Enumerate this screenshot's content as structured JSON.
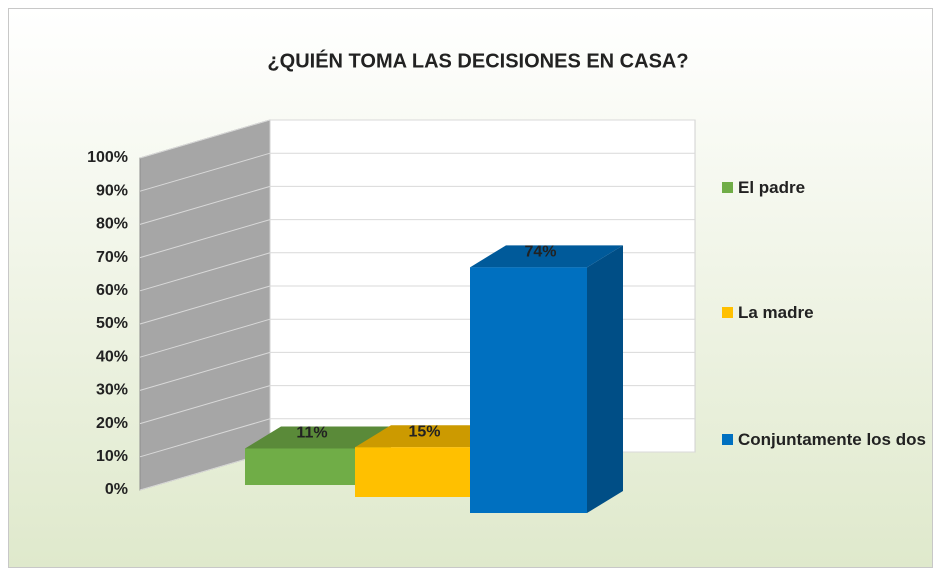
{
  "chart_data": {
    "type": "bar3d",
    "title": "¿QUIÉN TOMA LAS DECISIONES EN CASA?",
    "series": [
      {
        "name": "El padre",
        "color": "#70ad47",
        "values": [
          11
        ],
        "value_labels": [
          "11%"
        ]
      },
      {
        "name": "La madre",
        "color": "#ffc000",
        "values": [
          15
        ],
        "value_labels": [
          "15%"
        ]
      },
      {
        "name": "Conjuntamente los dos",
        "color": "#0070c0",
        "values": [
          74
        ],
        "value_labels": [
          "74%"
        ]
      }
    ],
    "ylim": [
      0,
      100
    ],
    "yticks": [
      {
        "value": 0,
        "label": "0%"
      },
      {
        "value": 10,
        "label": "10%"
      },
      {
        "value": 20,
        "label": "20%"
      },
      {
        "value": 30,
        "label": "30%"
      },
      {
        "value": 40,
        "label": "40%"
      },
      {
        "value": 50,
        "label": "50%"
      },
      {
        "value": 60,
        "label": "60%"
      },
      {
        "value": 70,
        "label": "70%"
      },
      {
        "value": 80,
        "label": "80%"
      },
      {
        "value": 90,
        "label": "90%"
      },
      {
        "value": 100,
        "label": "100%"
      }
    ],
    "grid": true,
    "legend": "right"
  }
}
